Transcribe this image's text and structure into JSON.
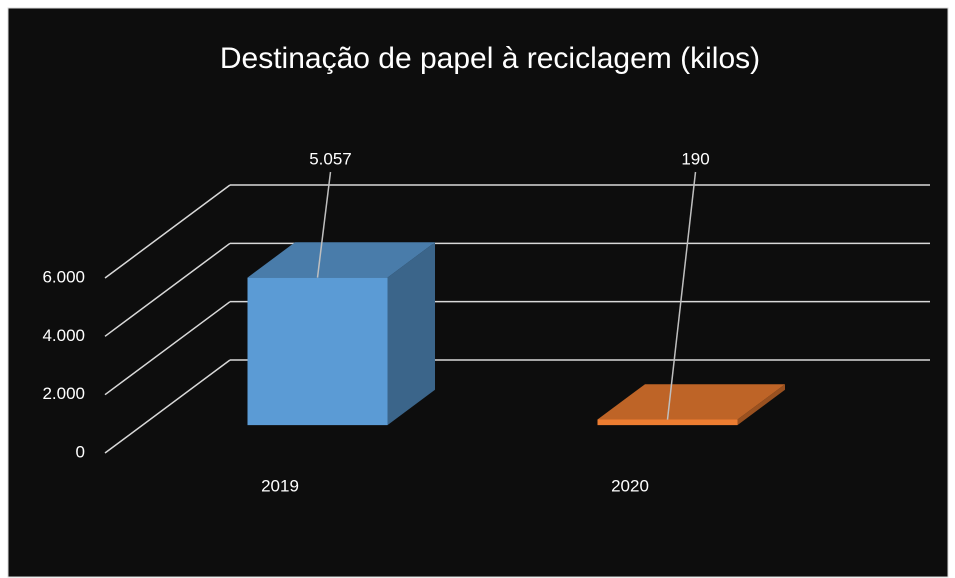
{
  "chart_data": {
    "type": "bar3d",
    "title": "Destinação de papel à reciclagem (kilos)",
    "categories": [
      "2019",
      "2020"
    ],
    "values": [
      5057,
      190
    ],
    "value_labels": [
      "5.057",
      "190"
    ],
    "colors": [
      "#5b9bd5",
      "#ed7d31"
    ],
    "ylim": [
      0,
      6000
    ],
    "yticks": [
      0,
      {
        "value": 2000,
        "label": "2.000"
      },
      {
        "value": 4000,
        "label": "4.000"
      },
      {
        "value": 6000,
        "label": "6.000"
      }
    ],
    "grid": true
  }
}
